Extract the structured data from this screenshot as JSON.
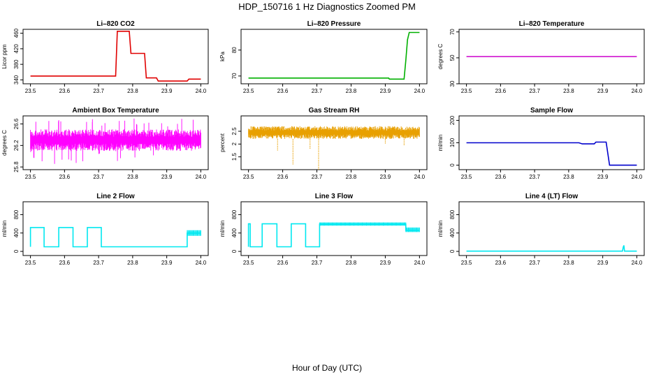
{
  "figure": {
    "title": "HDP_150716  1 Hz Diagnostics Zoomed PM",
    "xlabel": "Hour of Day (UTC)"
  },
  "chart_data": [
    {
      "id": "co2",
      "type": "line",
      "title": "Li–820 CO2",
      "ylabel": "Licor ppm",
      "color": "#e00000",
      "xlim": [
        23.5,
        24.0
      ],
      "ylim": [
        330,
        470
      ],
      "xticks": [
        "23.5",
        "23.6",
        "23.7",
        "23.8",
        "23.9",
        "24.0"
      ],
      "yticks": [
        "340",
        "380",
        "420",
        "460"
      ],
      "x": [
        23.5,
        23.75,
        23.755,
        23.79,
        23.795,
        23.835,
        23.84,
        23.87,
        23.875,
        23.96,
        23.965,
        24.0
      ],
      "y": [
        350,
        350,
        465,
        465,
        408,
        408,
        345,
        345,
        337,
        337,
        342,
        342
      ]
    },
    {
      "id": "pressure",
      "type": "line",
      "title": "Li–820 Pressure",
      "ylabel": "kPa",
      "color": "#00b000",
      "xlim": [
        23.5,
        24.0
      ],
      "ylim": [
        67,
        88
      ],
      "xticks": [
        "23.5",
        "23.6",
        "23.7",
        "23.8",
        "23.9",
        "24.0"
      ],
      "yticks": [
        "70",
        "80"
      ],
      "x": [
        23.5,
        23.91,
        23.912,
        23.955,
        23.96,
        23.965,
        23.97,
        24.0
      ],
      "y": [
        69.2,
        69.2,
        68.8,
        68.8,
        76,
        84,
        86.8,
        86.8
      ]
    },
    {
      "id": "temp",
      "type": "line",
      "title": "Li–820 Temperature",
      "ylabel": "degrees C",
      "color": "#cc00cc",
      "xlim": [
        23.5,
        24.0
      ],
      "ylim": [
        30,
        72
      ],
      "xticks": [
        "23.5",
        "23.6",
        "23.7",
        "23.8",
        "23.9",
        "24.0"
      ],
      "yticks": [
        "30",
        "50",
        "70"
      ],
      "x": [
        23.5,
        24.0
      ],
      "y": [
        51,
        51
      ]
    },
    {
      "id": "ambient",
      "type": "line",
      "title": "Ambient Box Temperature",
      "ylabel": "degrees C",
      "color": "#ff00ff",
      "xlim": [
        23.5,
        24.0
      ],
      "ylim": [
        25.75,
        26.75
      ],
      "xticks": [
        "23.5",
        "23.6",
        "23.7",
        "23.8",
        "23.9",
        "24.0"
      ],
      "yticks": [
        "25.8",
        "26.2",
        "26.6"
      ],
      "x": [
        23.5,
        24.0
      ],
      "y": [
        26.3,
        26.3
      ],
      "band": [
        26.1,
        26.5
      ],
      "spikes_low": 25.85,
      "spikes_high": 26.7
    },
    {
      "id": "rh",
      "type": "line",
      "title": "Gas Stream RH",
      "ylabel": "percent",
      "color": "#e8a000",
      "xlim": [
        23.5,
        24.0
      ],
      "ylim": [
        1.0,
        3.1
      ],
      "xticks": [
        "23.5",
        "23.6",
        "23.7",
        "23.8",
        "23.9",
        "24.0"
      ],
      "yticks": [
        "1.5",
        "2",
        "2.5"
      ],
      "x": [
        23.5,
        24.0
      ],
      "y": [
        2.45,
        2.45
      ],
      "band": [
        2.2,
        2.7
      ],
      "dips": [
        [
          23.585,
          1.75
        ],
        [
          23.63,
          1.2
        ],
        [
          23.68,
          1.8
        ],
        [
          23.705,
          1.0
        ],
        [
          23.9,
          2.0
        ],
        [
          23.955,
          1.95
        ]
      ]
    },
    {
      "id": "sample",
      "type": "line",
      "title": "Sample Flow",
      "ylabel": "ml/min",
      "color": "#0000cc",
      "xlim": [
        23.5,
        24.0
      ],
      "ylim": [
        -20,
        220
      ],
      "xticks": [
        "23.5",
        "23.6",
        "23.7",
        "23.8",
        "23.9",
        "24.0"
      ],
      "yticks": [
        "0",
        "100",
        "200"
      ],
      "x": [
        23.5,
        23.83,
        23.84,
        23.875,
        23.88,
        23.91,
        23.92,
        24.0
      ],
      "y": [
        100,
        100,
        95,
        95,
        103,
        103,
        0,
        0
      ]
    },
    {
      "id": "line2",
      "type": "line",
      "title": "Line 2 Flow",
      "ylabel": "ml/min",
      "color": "#00e8f0",
      "xlim": [
        23.5,
        24.0
      ],
      "ylim": [
        -90,
        1080
      ],
      "xticks": [
        "23.5",
        "23.6",
        "23.7",
        "23.8",
        "23.9",
        "24.0"
      ],
      "yticks": [
        "0",
        "400",
        "800"
      ],
      "x": [
        23.5,
        23.5,
        23.54,
        23.54,
        23.583,
        23.583,
        23.625,
        23.625,
        23.667,
        23.667,
        23.708,
        23.708,
        23.96,
        23.96,
        24.0
      ],
      "y": [
        100,
        520,
        520,
        100,
        100,
        520,
        520,
        100,
        100,
        520,
        520,
        100,
        100,
        400,
        400
      ],
      "band_segments": [
        [
          23.96,
          24.0,
          340,
          460
        ]
      ]
    },
    {
      "id": "line3",
      "type": "line",
      "title": "Line 3 Flow",
      "ylabel": "ml/min",
      "color": "#00e8f0",
      "xlim": [
        23.5,
        24.0
      ],
      "ylim": [
        -90,
        1080
      ],
      "xticks": [
        "23.5",
        "23.6",
        "23.7",
        "23.8",
        "23.9",
        "24.0"
      ],
      "yticks": [
        "0",
        "400",
        "800"
      ],
      "x": [
        23.5,
        23.5,
        23.505,
        23.505,
        23.54,
        23.54,
        23.583,
        23.583,
        23.625,
        23.625,
        23.667,
        23.667,
        23.708,
        23.708,
        23.96,
        23.96,
        24.0
      ],
      "y": [
        100,
        600,
        600,
        100,
        100,
        600,
        600,
        100,
        100,
        600,
        600,
        100,
        100,
        590,
        590,
        460,
        460
      ],
      "band_segments": [
        [
          23.708,
          23.96,
          560,
          630
        ],
        [
          23.96,
          24.0,
          420,
          520
        ]
      ]
    },
    {
      "id": "line4",
      "type": "line",
      "title": "Line 4 (LT) Flow",
      "ylabel": "ml/min",
      "color": "#00e8f0",
      "xlim": [
        23.5,
        24.0
      ],
      "ylim": [
        -90,
        1080
      ],
      "xticks": [
        "23.5",
        "23.6",
        "23.7",
        "23.8",
        "23.9",
        "24.0"
      ],
      "yticks": [
        "0",
        "400",
        "800"
      ],
      "x": [
        23.5,
        23.958,
        23.96,
        23.962,
        23.964,
        24.0
      ],
      "y": [
        5,
        5,
        90,
        130,
        5,
        5
      ]
    }
  ]
}
